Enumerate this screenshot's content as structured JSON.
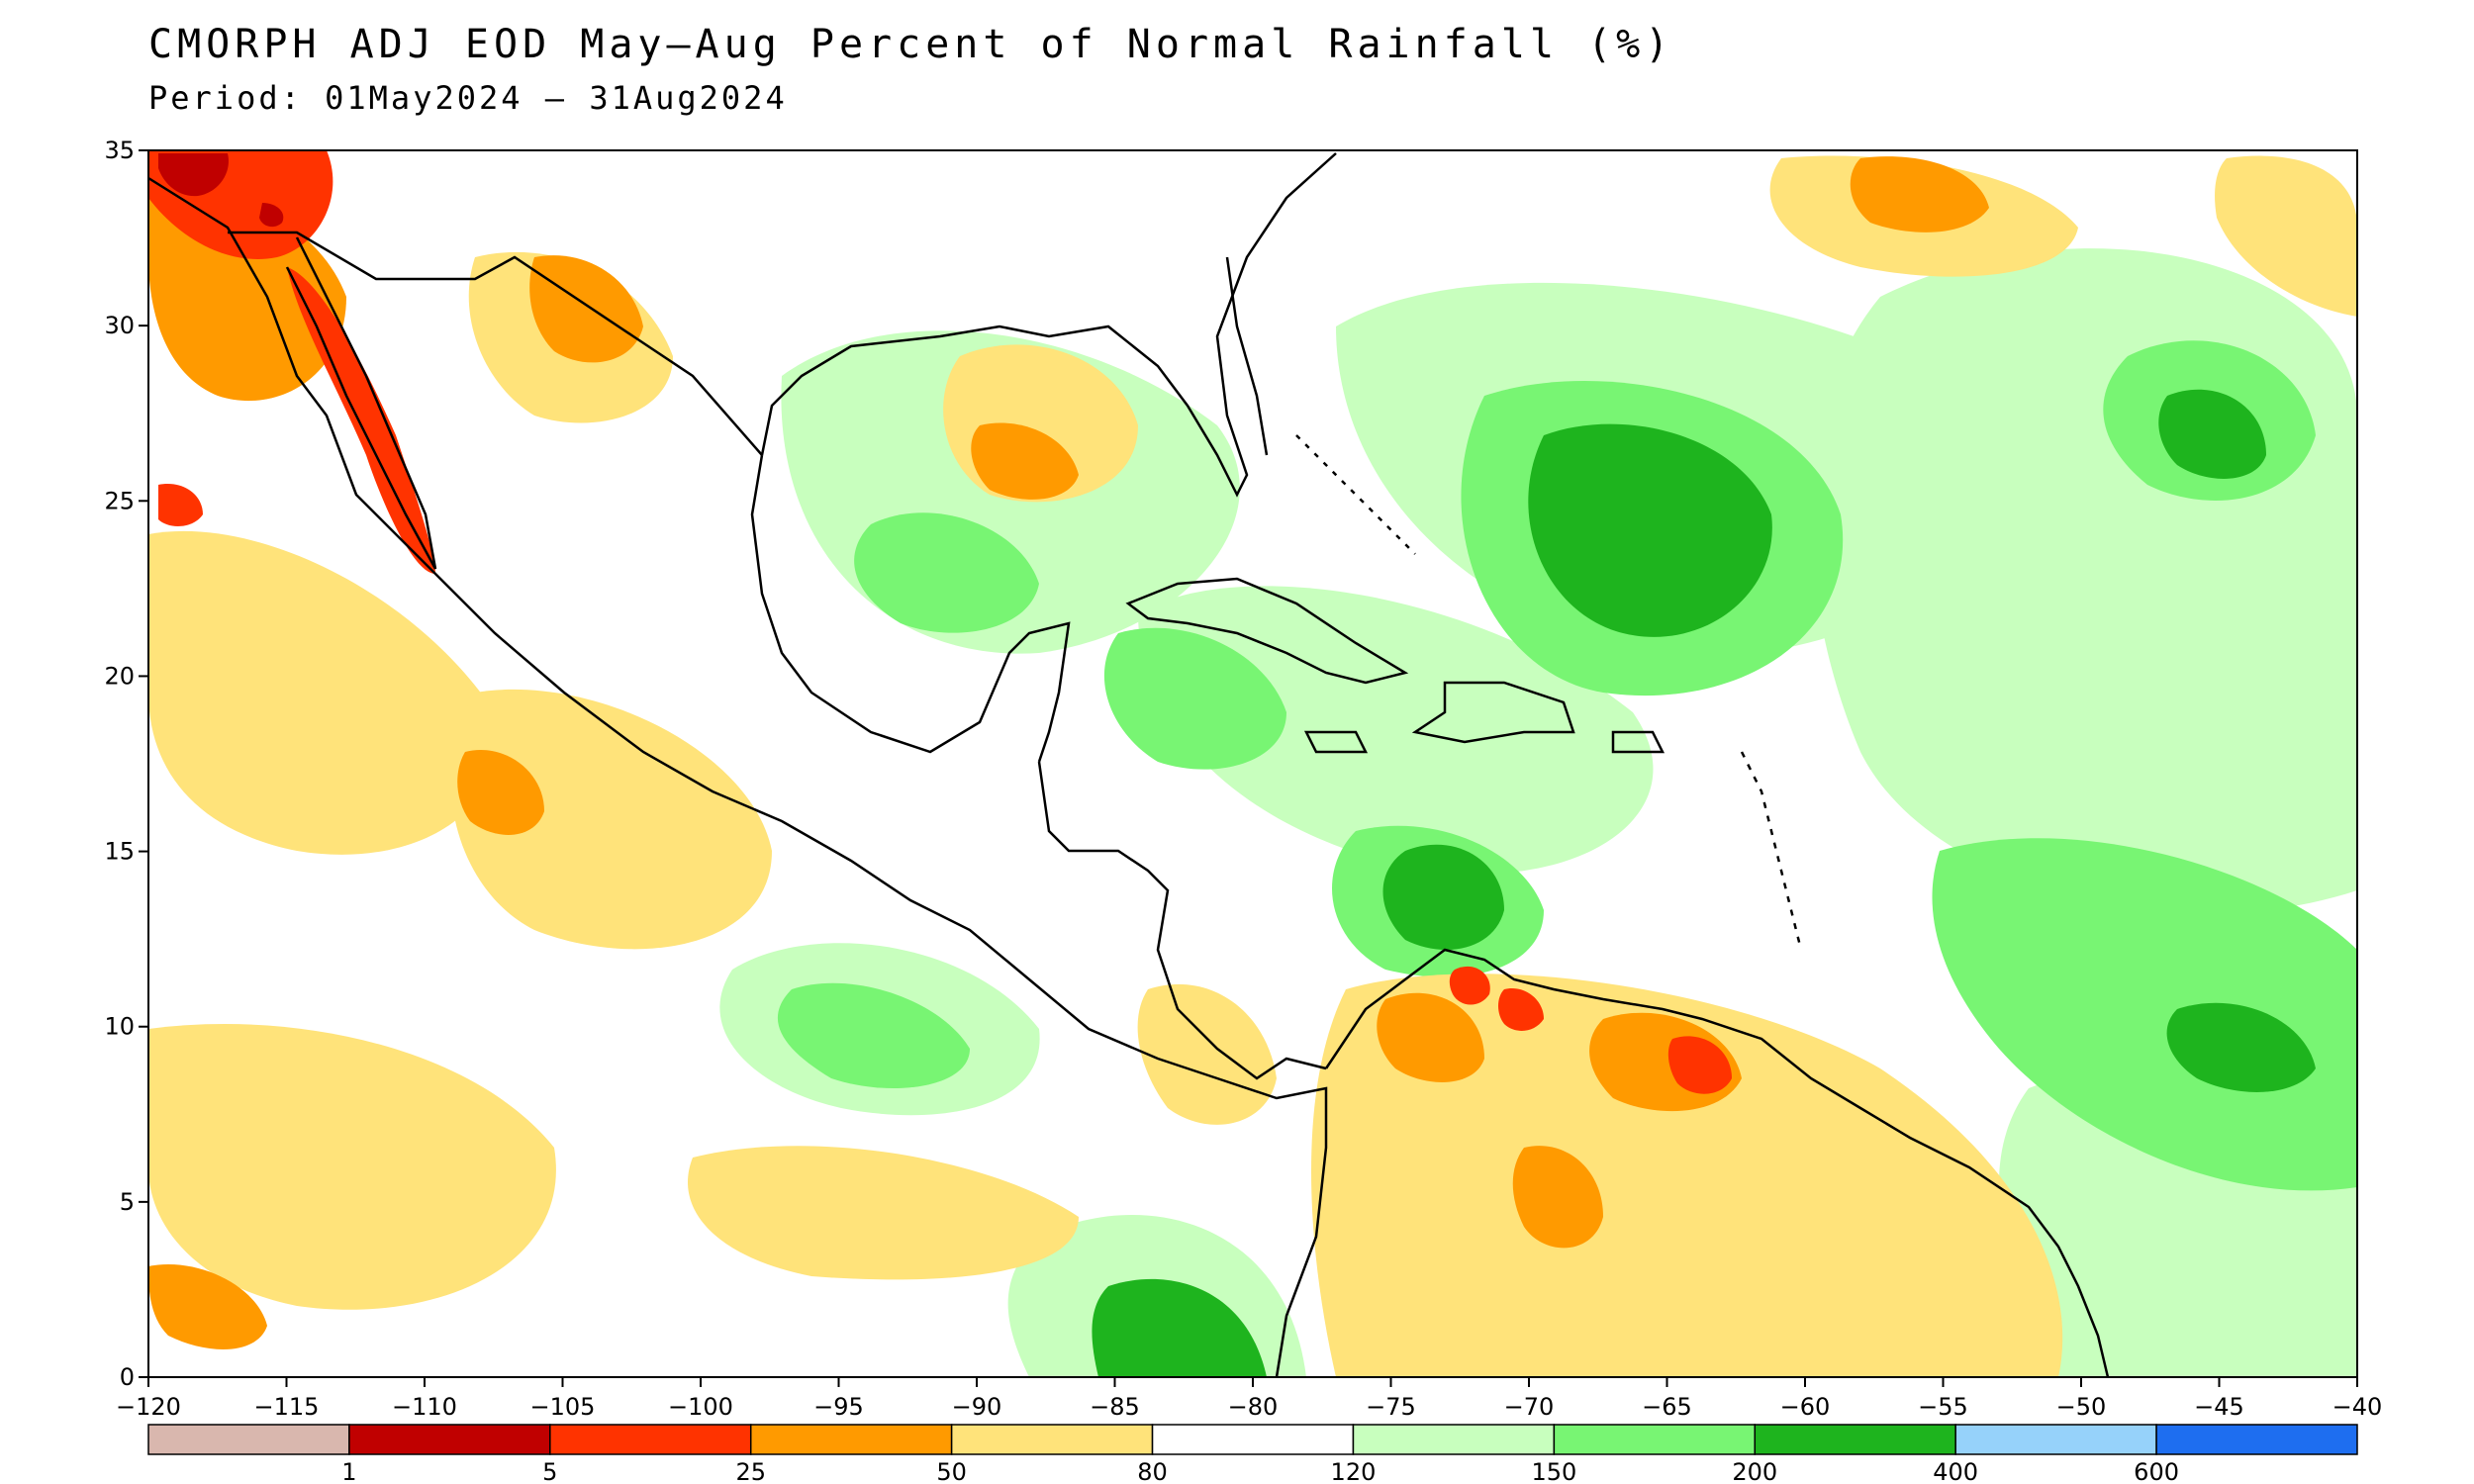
{
  "title": "CMORPH ADJ EOD May—Aug Percent of Normal Rainfall (%)",
  "subtitle": "Period: 01May2024 — 31Aug2024",
  "map": {
    "lon_range": [
      -120,
      -40
    ],
    "lat_range": [
      0,
      35
    ],
    "lon_ticks": [
      "−120",
      "−115",
      "−110",
      "−105",
      "−100",
      "−95",
      "−90",
      "−85",
      "−80",
      "−75",
      "−70",
      "−65",
      "−60",
      "−55",
      "−50",
      "−45",
      "−40"
    ],
    "lat_ticks": [
      "0",
      "5",
      "10",
      "15",
      "20",
      "25",
      "30",
      "35"
    ]
  },
  "legend": {
    "labels": [
      "1",
      "5",
      "25",
      "50",
      "80",
      "120",
      "150",
      "200",
      "400",
      "600"
    ],
    "colors": [
      "#d9b7ae",
      "#c00000",
      "#ff3300",
      "#ff9a00",
      "#ffe37a",
      "#ffffff",
      "#c8ffbe",
      "#78f573",
      "#1eb41e",
      "#96d2fa",
      "#1e6ef0"
    ]
  },
  "colors": {
    "deficit_severe": "#ff3300",
    "deficit": "#ff9a00",
    "below": "#ffe37a",
    "above": "#c8ffbe",
    "wet": "#78f573",
    "very_wet": "#1eb41e"
  }
}
